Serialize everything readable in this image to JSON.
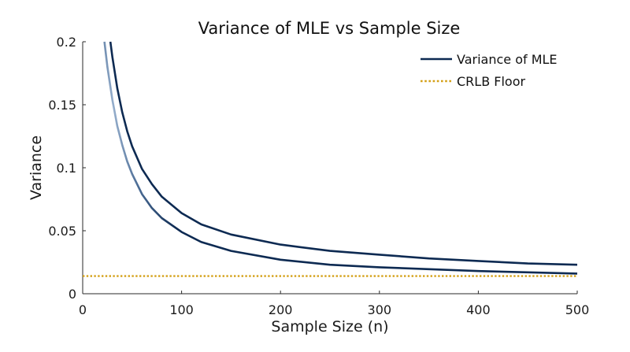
{
  "chart_data": {
    "type": "line",
    "title": "Variance of MLE vs Sample Size",
    "xlabel": "Sample Size (n)",
    "ylabel": "Variance",
    "xlim": [
      0,
      500
    ],
    "ylim": [
      0,
      0.2
    ],
    "x_ticks": [
      0,
      100,
      200,
      300,
      400,
      500
    ],
    "y_ticks": [
      0,
      0.05,
      0.1,
      0.15,
      0.2
    ],
    "x_tick_labels": [
      "0",
      "100",
      "200",
      "300",
      "400",
      "500"
    ],
    "y_tick_labels": [
      "0",
      "0.05",
      "0.1",
      "0.15",
      "0.2"
    ],
    "grid": false,
    "legend_position": "top-right",
    "legend": [
      "Variance of MLE",
      "CRLB Floor"
    ],
    "series": [
      {
        "name": "Variance of MLE",
        "color": "#0d2a52",
        "style": "solid",
        "band": "upper",
        "x": [
          28,
          30,
          35,
          40,
          45,
          50,
          60,
          70,
          80,
          100,
          120,
          150,
          200,
          250,
          300,
          350,
          400,
          450,
          500
        ],
        "y": [
          0.2,
          0.188,
          0.163,
          0.144,
          0.129,
          0.117,
          0.099,
          0.087,
          0.077,
          0.064,
          0.055,
          0.047,
          0.039,
          0.034,
          0.031,
          0.028,
          0.026,
          0.024,
          0.023
        ]
      },
      {
        "name": "Variance of MLE",
        "color": "#0d2a52",
        "style": "solid",
        "band": "lower",
        "x": [
          22,
          25,
          30,
          35,
          40,
          45,
          50,
          60,
          70,
          80,
          100,
          120,
          150,
          200,
          250,
          300,
          350,
          400,
          450,
          500
        ],
        "y": [
          0.2,
          0.18,
          0.154,
          0.133,
          0.118,
          0.105,
          0.095,
          0.079,
          0.068,
          0.06,
          0.049,
          0.041,
          0.034,
          0.027,
          0.023,
          0.021,
          0.0195,
          0.018,
          0.017,
          0.016
        ]
      },
      {
        "name": "CRLB Floor",
        "color": "#d4a017",
        "style": "dotted",
        "x": [
          0,
          500
        ],
        "y": [
          0.014,
          0.014
        ]
      }
    ]
  }
}
